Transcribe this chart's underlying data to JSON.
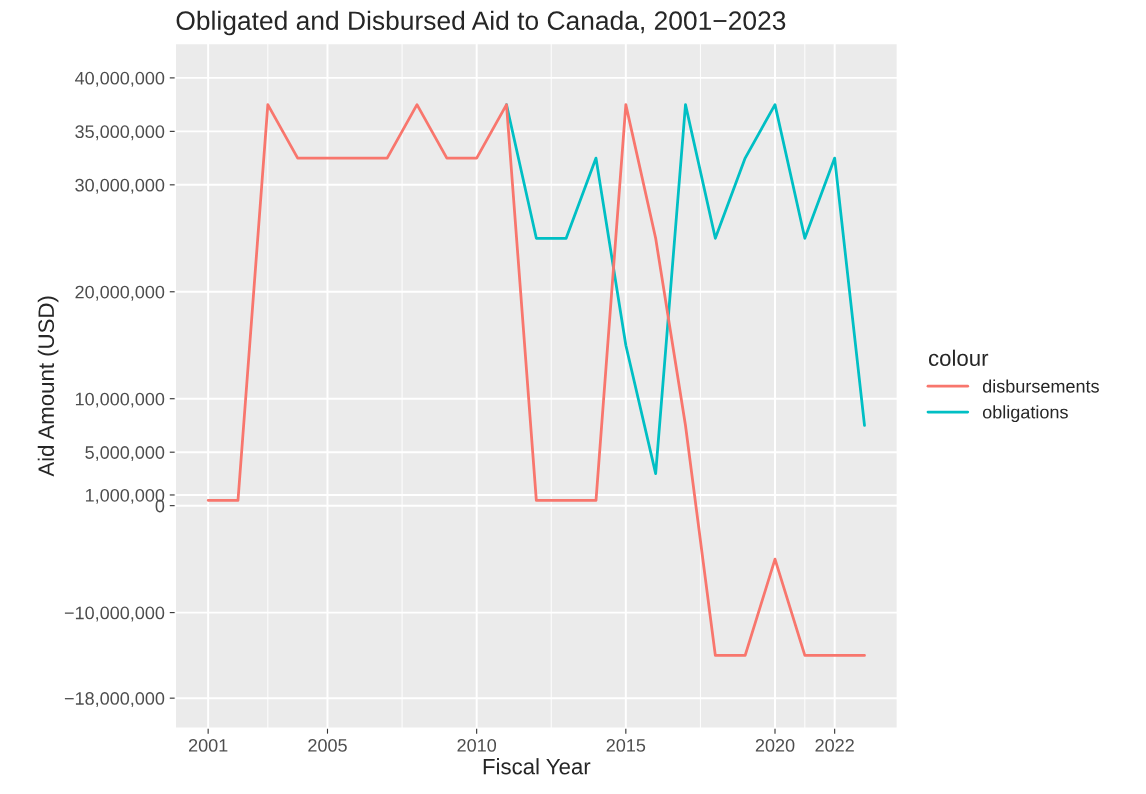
{
  "chart_data": {
    "type": "line",
    "title": "Obligated and Disbursed Aid to Canada, 2001−2023",
    "xlabel": "Fiscal Year",
    "ylabel": "Aid Amount (USD)",
    "legend_title": "colour",
    "legend": "right",
    "grid": true,
    "line_style": "solid",
    "x": [
      2001,
      2002,
      2003,
      2004,
      2005,
      2006,
      2007,
      2008,
      2009,
      2010,
      2011,
      2012,
      2013,
      2014,
      2015,
      2016,
      2017,
      2018,
      2019,
      2020,
      2021,
      2022,
      2023
    ],
    "series": [
      {
        "name": "disbursements",
        "color": "#f8766d",
        "values": [
          500000,
          500000,
          37500000,
          32500000,
          32500000,
          32500000,
          32500000,
          37500000,
          32500000,
          32500000,
          37500000,
          500000,
          500000,
          500000,
          37500000,
          25000000,
          7500000,
          -14000000,
          -14000000,
          -5000000,
          -14000000,
          -14000000,
          -14000000
        ]
      },
      {
        "name": "obligations",
        "color": "#00bfc4",
        "values": [
          null,
          null,
          null,
          null,
          null,
          null,
          null,
          null,
          null,
          null,
          37500000,
          25000000,
          25000000,
          32500000,
          15000000,
          3000000,
          37500000,
          25000000,
          32500000,
          37500000,
          25000000,
          32500000,
          7500000
        ]
      }
    ],
    "xlim": [
      1999.9,
      2024.1
    ],
    "xticks": [
      2001,
      2005,
      2010,
      2015,
      2020,
      2022
    ],
    "ylim": [
      -20800000,
      43200000
    ],
    "yticks": [
      {
        "value": 40000000,
        "label": "40,000,000"
      },
      {
        "value": 35000000,
        "label": "35,000,000"
      },
      {
        "value": 30000000,
        "label": "30,000,000"
      },
      {
        "value": 20000000,
        "label": "20,000,000"
      },
      {
        "value": 10000000,
        "label": "10,000,000"
      },
      {
        "value": 5000000,
        "label": "5,000,000"
      },
      {
        "value": 1000000,
        "label": "1,000,000"
      },
      {
        "value": 0,
        "label": "0"
      },
      {
        "value": -10000000,
        "label": "−10,000,000"
      },
      {
        "value": -18000000,
        "label": "−18,000,000"
      }
    ]
  }
}
